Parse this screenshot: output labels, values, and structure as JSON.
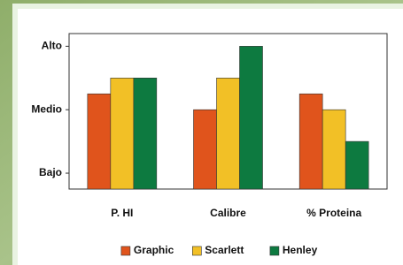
{
  "chart_data": {
    "type": "bar",
    "categories": [
      "P. HI",
      "Calibre",
      "% Proteina"
    ],
    "series": [
      {
        "name": "Graphic",
        "color": "#e0541c",
        "values": [
          2.25,
          2,
          2.25
        ]
      },
      {
        "name": "Scarlett",
        "color": "#f2c026",
        "values": [
          2.5,
          2.5,
          2
        ]
      },
      {
        "name": "Henley",
        "color": "#0d7a40",
        "values": [
          2.5,
          3,
          1.5
        ]
      }
    ],
    "ylim": [
      0.75,
      3.2
    ],
    "yticks": [
      {
        "value": 1,
        "label": "Bajo"
      },
      {
        "value": 2,
        "label": "Medio"
      },
      {
        "value": 3,
        "label": "Alto"
      }
    ],
    "grid": false,
    "legend": "bottom"
  }
}
